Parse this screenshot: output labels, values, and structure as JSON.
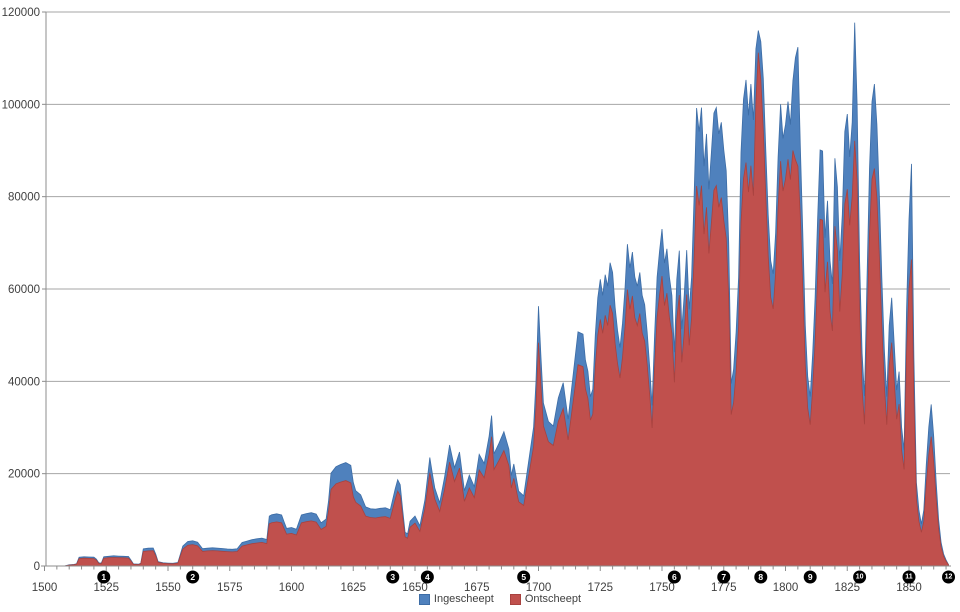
{
  "chart_data": {
    "type": "area",
    "title": "",
    "xlabel": "",
    "ylabel": "",
    "x_axis": {
      "min": 1500,
      "max": 1866,
      "major_tick_step": 25,
      "minor_tick_step": 5,
      "labels": [
        "1500",
        "1525",
        "1550",
        "1575",
        "1600",
        "1625",
        "1650",
        "1675",
        "1700",
        "1725",
        "1750",
        "1775",
        "1800",
        "1825",
        "1850"
      ]
    },
    "y_axis": {
      "min": 0,
      "max": 120000,
      "tick_step": 20000,
      "labels": [
        "0",
        "20000",
        "40000",
        "60000",
        "80000",
        "100000",
        "120000"
      ]
    },
    "grid": true,
    "legend_position": "bottom-center",
    "series": [
      {
        "name": "Ingescheept",
        "color": "#4f81bd",
        "edge_color": "#3d6da6"
      },
      {
        "name": "Ontscheept",
        "color": "#c0504d",
        "edge_color": "#a8423f"
      }
    ],
    "columns": [
      "year",
      "ingescheept",
      "ontscheept"
    ],
    "data": [
      [
        1508,
        0,
        0
      ],
      [
        1510,
        250,
        200
      ],
      [
        1512,
        350,
        280
      ],
      [
        1513,
        500,
        400
      ],
      [
        1514,
        1900,
        1600
      ],
      [
        1516,
        2000,
        1700
      ],
      [
        1518,
        1950,
        1650
      ],
      [
        1520,
        1900,
        1600
      ],
      [
        1521,
        1500,
        1250
      ],
      [
        1522,
        700,
        550
      ],
      [
        1523,
        600,
        480
      ],
      [
        1524,
        2000,
        1700
      ],
      [
        1526,
        2100,
        1800
      ],
      [
        1528,
        2200,
        1850
      ],
      [
        1530,
        2150,
        1800
      ],
      [
        1532,
        2100,
        1780
      ],
      [
        1534,
        2050,
        1720
      ],
      [
        1535,
        1300,
        1080
      ],
      [
        1536,
        450,
        370
      ],
      [
        1538,
        380,
        310
      ],
      [
        1539,
        600,
        490
      ],
      [
        1540,
        3700,
        3150
      ],
      [
        1542,
        3850,
        3280
      ],
      [
        1544,
        3900,
        3320
      ],
      [
        1545,
        2600,
        2200
      ],
      [
        1546,
        950,
        790
      ],
      [
        1548,
        700,
        580
      ],
      [
        1550,
        620,
        510
      ],
      [
        1552,
        580,
        470
      ],
      [
        1554,
        750,
        620
      ],
      [
        1556,
        4300,
        3650
      ],
      [
        1558,
        5300,
        4500
      ],
      [
        1560,
        5450,
        4630
      ],
      [
        1562,
        5150,
        4380
      ],
      [
        1564,
        3750,
        3170
      ],
      [
        1566,
        3850,
        3260
      ],
      [
        1568,
        3950,
        3340
      ],
      [
        1570,
        3870,
        3270
      ],
      [
        1572,
        3780,
        3190
      ],
      [
        1574,
        3680,
        3110
      ],
      [
        1576,
        3620,
        3060
      ],
      [
        1578,
        3720,
        3140
      ],
      [
        1580,
        5100,
        4310
      ],
      [
        1582,
        5400,
        4560
      ],
      [
        1584,
        5700,
        4820
      ],
      [
        1586,
        5900,
        4990
      ],
      [
        1588,
        6050,
        5110
      ],
      [
        1590,
        5750,
        4860
      ],
      [
        1591,
        10800,
        9130
      ],
      [
        1592,
        11100,
        9380
      ],
      [
        1594,
        11300,
        9550
      ],
      [
        1596,
        11050,
        9340
      ],
      [
        1597,
        9550,
        8070
      ],
      [
        1598,
        8150,
        6890
      ],
      [
        1600,
        8350,
        7060
      ],
      [
        1602,
        7950,
        6720
      ],
      [
        1604,
        11050,
        9340
      ],
      [
        1606,
        11350,
        9590
      ],
      [
        1608,
        11550,
        9760
      ],
      [
        1610,
        11250,
        9510
      ],
      [
        1612,
        9350,
        7900
      ],
      [
        1614,
        10150,
        8580
      ],
      [
        1615,
        14200,
        12000
      ],
      [
        1616,
        20100,
        16600
      ],
      [
        1618,
        21500,
        17800
      ],
      [
        1620,
        22000,
        18200
      ],
      [
        1622,
        22400,
        18500
      ],
      [
        1624,
        21800,
        18000
      ],
      [
        1625,
        18100,
        15000
      ],
      [
        1626,
        16300,
        13800
      ],
      [
        1628,
        15400,
        13000
      ],
      [
        1630,
        12800,
        10800
      ],
      [
        1632,
        12400,
        10500
      ],
      [
        1634,
        12300,
        10400
      ],
      [
        1636,
        12500,
        10600
      ],
      [
        1638,
        12600,
        10700
      ],
      [
        1640,
        12200,
        10300
      ],
      [
        1642,
        16700,
        14400
      ],
      [
        1643,
        18700,
        16200
      ],
      [
        1644,
        17600,
        15200
      ],
      [
        1645,
        12100,
        10500
      ],
      [
        1646,
        7300,
        6300
      ],
      [
        1647,
        7000,
        6000
      ],
      [
        1648,
        9700,
        8400
      ],
      [
        1650,
        10800,
        9300
      ],
      [
        1652,
        8700,
        7500
      ],
      [
        1654,
        14300,
        12400
      ],
      [
        1656,
        23500,
        20200
      ],
      [
        1657,
        20100,
        17300
      ],
      [
        1658,
        16900,
        14500
      ],
      [
        1660,
        13700,
        11800
      ],
      [
        1662,
        19300,
        16600
      ],
      [
        1664,
        26200,
        22500
      ],
      [
        1666,
        21300,
        18300
      ],
      [
        1668,
        24700,
        21200
      ],
      [
        1670,
        16300,
        14000
      ],
      [
        1672,
        19700,
        16900
      ],
      [
        1674,
        17200,
        14800
      ],
      [
        1676,
        24200,
        20800
      ],
      [
        1678,
        22200,
        19100
      ],
      [
        1680,
        28100,
        24200
      ],
      [
        1681,
        32600,
        28000
      ],
      [
        1682,
        24300,
        20900
      ],
      [
        1684,
        26600,
        22900
      ],
      [
        1686,
        29100,
        25000
      ],
      [
        1688,
        25300,
        21700
      ],
      [
        1689,
        19600,
        16900
      ],
      [
        1690,
        22100,
        19000
      ],
      [
        1692,
        16200,
        13900
      ],
      [
        1694,
        15200,
        13100
      ],
      [
        1696,
        22600,
        19400
      ],
      [
        1698,
        30100,
        25900
      ],
      [
        1699,
        40100,
        34500
      ],
      [
        1700,
        56300,
        48400
      ],
      [
        1701,
        45100,
        38800
      ],
      [
        1702,
        35300,
        30400
      ],
      [
        1704,
        31300,
        26900
      ],
      [
        1706,
        30300,
        26100
      ],
      [
        1708,
        36400,
        31300
      ],
      [
        1710,
        39700,
        34100
      ],
      [
        1712,
        31800,
        27300
      ],
      [
        1714,
        41300,
        35500
      ],
      [
        1716,
        50700,
        43600
      ],
      [
        1718,
        50200,
        43200
      ],
      [
        1719,
        44600,
        38400
      ],
      [
        1720,
        42200,
        36300
      ],
      [
        1721,
        36700,
        31600
      ],
      [
        1722,
        38300,
        32900
      ],
      [
        1723,
        50100,
        43100
      ],
      [
        1724,
        58100,
        50000
      ],
      [
        1725,
        62100,
        53400
      ],
      [
        1726,
        58600,
        50400
      ],
      [
        1727,
        63100,
        54300
      ],
      [
        1728,
        60600,
        52100
      ],
      [
        1729,
        65700,
        56500
      ],
      [
        1730,
        63600,
        54700
      ],
      [
        1731,
        56100,
        48200
      ],
      [
        1732,
        51100,
        43900
      ],
      [
        1733,
        47300,
        40700
      ],
      [
        1734,
        52600,
        45200
      ],
      [
        1735,
        60100,
        51700
      ],
      [
        1736,
        69700,
        59900
      ],
      [
        1737,
        64600,
        55600
      ],
      [
        1738,
        68000,
        58500
      ],
      [
        1739,
        62600,
        53800
      ],
      [
        1740,
        60600,
        52100
      ],
      [
        1741,
        63600,
        54700
      ],
      [
        1742,
        58600,
        50400
      ],
      [
        1743,
        56600,
        48700
      ],
      [
        1744,
        50600,
        43500
      ],
      [
        1745,
        43100,
        37100
      ],
      [
        1746,
        34800,
        29900
      ],
      [
        1747,
        50100,
        43100
      ],
      [
        1748,
        62600,
        53800
      ],
      [
        1749,
        68100,
        58600
      ],
      [
        1750,
        73000,
        62800
      ],
      [
        1751,
        65600,
        56400
      ],
      [
        1752,
        68700,
        59100
      ],
      [
        1753,
        62600,
        53800
      ],
      [
        1754,
        58600,
        50400
      ],
      [
        1755,
        46300,
        39800
      ],
      [
        1756,
        62100,
        53400
      ],
      [
        1757,
        68300,
        58700
      ],
      [
        1758,
        51300,
        44100
      ],
      [
        1759,
        58600,
        50400
      ],
      [
        1760,
        68400,
        58800
      ],
      [
        1761,
        55600,
        47800
      ],
      [
        1762,
        62600,
        53800
      ],
      [
        1763,
        80100,
        66500
      ],
      [
        1764,
        99200,
        82300
      ],
      [
        1765,
        94100,
        78100
      ],
      [
        1766,
        99300,
        82400
      ],
      [
        1767,
        86600,
        71900
      ],
      [
        1768,
        93600,
        77700
      ],
      [
        1769,
        81600,
        67700
      ],
      [
        1770,
        89600,
        74400
      ],
      [
        1771,
        98100,
        81400
      ],
      [
        1772,
        99300,
        82400
      ],
      [
        1773,
        93600,
        77700
      ],
      [
        1774,
        96100,
        79800
      ],
      [
        1775,
        90100,
        74800
      ],
      [
        1776,
        85600,
        71000
      ],
      [
        1777,
        70100,
        58200
      ],
      [
        1778,
        39500,
        32800
      ],
      [
        1779,
        42600,
        35400
      ],
      [
        1780,
        50600,
        42000
      ],
      [
        1781,
        62600,
        52000
      ],
      [
        1782,
        89600,
        74400
      ],
      [
        1783,
        101100,
        83900
      ],
      [
        1784,
        105300,
        87400
      ],
      [
        1785,
        97600,
        81000
      ],
      [
        1786,
        104400,
        86700
      ],
      [
        1787,
        96600,
        80200
      ],
      [
        1788,
        112000,
        100500
      ],
      [
        1789,
        116000,
        111200
      ],
      [
        1790,
        113600,
        105300
      ],
      [
        1791,
        105600,
        94400
      ],
      [
        1792,
        90600,
        80600
      ],
      [
        1793,
        76100,
        67100
      ],
      [
        1794,
        66100,
        58200
      ],
      [
        1795,
        63300,
        55700
      ],
      [
        1796,
        72100,
        63400
      ],
      [
        1797,
        88600,
        77800
      ],
      [
        1798,
        100000,
        87700
      ],
      [
        1799,
        92600,
        81200
      ],
      [
        1800,
        95600,
        83800
      ],
      [
        1801,
        100600,
        88100
      ],
      [
        1802,
        95600,
        83700
      ],
      [
        1803,
        105100,
        90000
      ],
      [
        1804,
        110100,
        88000
      ],
      [
        1805,
        112400,
        86600
      ],
      [
        1806,
        91100,
        75800
      ],
      [
        1807,
        72100,
        60000
      ],
      [
        1808,
        52100,
        43400
      ],
      [
        1809,
        41100,
        34200
      ],
      [
        1810,
        36700,
        30600
      ],
      [
        1811,
        46100,
        38400
      ],
      [
        1812,
        58100,
        48400
      ],
      [
        1813,
        75100,
        62600
      ],
      [
        1814,
        90100,
        75100
      ],
      [
        1815,
        89900,
        74900
      ],
      [
        1816,
        71100,
        59300
      ],
      [
        1817,
        79100,
        65900
      ],
      [
        1818,
        66100,
        55100
      ],
      [
        1819,
        61100,
        50900
      ],
      [
        1820,
        88300,
        73600
      ],
      [
        1821,
        82100,
        68400
      ],
      [
        1822,
        66100,
        55100
      ],
      [
        1823,
        76100,
        63400
      ],
      [
        1824,
        94100,
        78400
      ],
      [
        1825,
        97900,
        81600
      ],
      [
        1826,
        88600,
        73800
      ],
      [
        1827,
        96100,
        80100
      ],
      [
        1828,
        117700,
        92100
      ],
      [
        1829,
        100100,
        83400
      ],
      [
        1830,
        66100,
        55100
      ],
      [
        1831,
        46100,
        38400
      ],
      [
        1832,
        36800,
        30700
      ],
      [
        1833,
        62100,
        51800
      ],
      [
        1834,
        86100,
        71800
      ],
      [
        1835,
        100600,
        83800
      ],
      [
        1836,
        104400,
        86100
      ],
      [
        1837,
        95600,
        79700
      ],
      [
        1838,
        80100,
        66800
      ],
      [
        1839,
        62600,
        52200
      ],
      [
        1840,
        47100,
        39300
      ],
      [
        1841,
        36700,
        30600
      ],
      [
        1842,
        52100,
        43400
      ],
      [
        1843,
        58100,
        48400
      ],
      [
        1844,
        48100,
        40100
      ],
      [
        1845,
        38100,
        31800
      ],
      [
        1846,
        42100,
        35100
      ],
      [
        1847,
        30100,
        25100
      ],
      [
        1848,
        25100,
        20900
      ],
      [
        1849,
        55100,
        45900
      ],
      [
        1850,
        75100,
        60100
      ],
      [
        1851,
        87100,
        66400
      ],
      [
        1852,
        45100,
        36100
      ],
      [
        1853,
        18100,
        14500
      ],
      [
        1854,
        12100,
        9700
      ],
      [
        1855,
        9100,
        7300
      ],
      [
        1856,
        12100,
        9700
      ],
      [
        1857,
        22100,
        17700
      ],
      [
        1858,
        30100,
        24100
      ],
      [
        1859,
        35000,
        28000
      ],
      [
        1860,
        28100,
        22500
      ],
      [
        1861,
        18100,
        14500
      ],
      [
        1862,
        10100,
        8100
      ],
      [
        1863,
        5100,
        4100
      ],
      [
        1864,
        2600,
        2100
      ],
      [
        1865,
        1300,
        1000
      ],
      [
        1866,
        300,
        250
      ]
    ],
    "event_markers": [
      {
        "label": "1",
        "year": 1524
      },
      {
        "label": "2",
        "year": 1560
      },
      {
        "label": "3",
        "year": 1641
      },
      {
        "label": "4",
        "year": 1655
      },
      {
        "label": "5",
        "year": 1694
      },
      {
        "label": "6",
        "year": 1755
      },
      {
        "label": "7",
        "year": 1775
      },
      {
        "label": "8",
        "year": 1790
      },
      {
        "label": "9",
        "year": 1810
      },
      {
        "label": "10",
        "year": 1830
      },
      {
        "label": "11",
        "year": 1850
      },
      {
        "label": "12",
        "year": 1866
      }
    ],
    "marker_color": "#000000",
    "marker_text_color": "#ffffff",
    "grid_color": "#a6a6a6",
    "axis_color": "#8c8c8c",
    "label_color": "#3f3f3f",
    "background": "#ffffff"
  }
}
